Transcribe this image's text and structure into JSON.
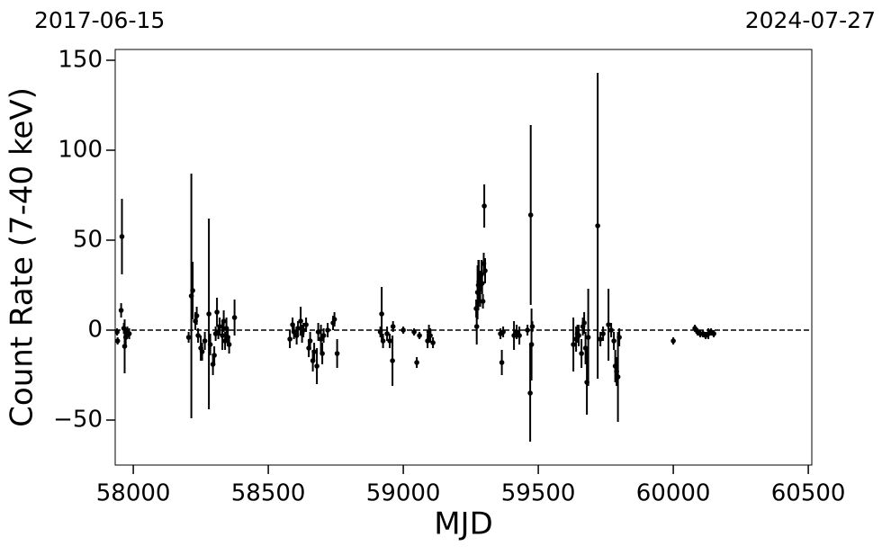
{
  "chart_data": {
    "type": "errorbar",
    "annotations": [
      "2017-06-15",
      "2024-07-27"
    ],
    "xlabel": "MJD",
    "ylabel": "Count Rate (7-40 keV)",
    "xlim": [
      57933,
      60513
    ],
    "ylim": [
      -75,
      156
    ],
    "xticks": [
      58000,
      58500,
      59000,
      59500,
      60000,
      60500
    ],
    "yticks": [
      {
        "value": -50,
        "label": "−50"
      },
      0,
      50,
      100,
      150
    ],
    "reference_line": {
      "y": 0
    },
    "color": "#000000",
    "x": [
      57940,
      57942,
      57955,
      57958,
      57965,
      57968,
      57972,
      57978,
      57985,
      58205,
      58215,
      58220,
      58230,
      58235,
      58240,
      58250,
      58255,
      58265,
      58280,
      58285,
      58295,
      58300,
      58305,
      58310,
      58315,
      58320,
      58330,
      58335,
      58340,
      58345,
      58350,
      58355,
      58375,
      58580,
      58590,
      58595,
      58605,
      58610,
      58620,
      58625,
      58630,
      58640,
      58650,
      58655,
      58665,
      58670,
      58680,
      58685,
      58695,
      58700,
      58705,
      58720,
      58740,
      58745,
      58755,
      58915,
      58920,
      58925,
      58940,
      58950,
      58960,
      58962,
      59000,
      59040,
      59050,
      59060,
      59090,
      59095,
      59100,
      59110,
      59270,
      59272,
      59275,
      59278,
      59280,
      59285,
      59290,
      59292,
      59295,
      59298,
      59300,
      59303,
      59360,
      59365,
      59370,
      59410,
      59420,
      59430,
      59460,
      59470,
      59472,
      59475,
      59478,
      59630,
      59640,
      59645,
      59650,
      59660,
      59665,
      59670,
      59675,
      59680,
      59685,
      59720,
      59730,
      59740,
      59760,
      59770,
      59780,
      59785,
      59790,
      59795,
      59800,
      60000,
      60080,
      60090,
      60100,
      60110,
      60120,
      60130,
      60140,
      60150
    ],
    "values": [
      -1,
      -6,
      11,
      52,
      1,
      -9,
      -4,
      -1,
      -2,
      -4,
      19,
      22,
      5,
      8,
      -3,
      -10,
      -12,
      -6,
      9,
      -8,
      -19,
      -14,
      -2,
      10,
      -1,
      2,
      -3,
      5,
      -6,
      1,
      -4,
      -8,
      7,
      -5,
      3,
      -1,
      -3,
      1,
      5,
      -2,
      0,
      3,
      -10,
      -6,
      -17,
      -12,
      -20,
      -1,
      -5,
      -13,
      -3,
      0,
      4,
      6,
      -13,
      -1,
      9,
      -6,
      -2,
      -6,
      -17,
      2,
      0,
      -1,
      -18,
      -3,
      -6,
      -1,
      -3,
      -7,
      12,
      2,
      21,
      25,
      27,
      23,
      31,
      26,
      16,
      37,
      69,
      33,
      -2,
      -18,
      -1,
      -3,
      -1,
      -3,
      0,
      -35,
      64,
      -8,
      2,
      -8,
      -5,
      -2,
      -3,
      -13,
      2,
      4,
      -10,
      -29,
      -4,
      58,
      -5,
      -2,
      3,
      0,
      -6,
      -20,
      -23,
      -26,
      -4,
      -6,
      1,
      -1,
      -2,
      -2,
      -3,
      -2,
      -1,
      -2
    ],
    "errors": [
      2,
      2,
      4,
      21,
      3,
      15,
      5,
      3,
      3,
      3,
      68,
      16,
      5,
      5,
      4,
      7,
      5,
      5,
      53,
      6,
      6,
      5,
      4,
      8,
      4,
      5,
      8,
      6,
      5,
      6,
      5,
      5,
      10,
      5,
      4,
      4,
      5,
      4,
      8,
      5,
      4,
      4,
      5,
      5,
      6,
      5,
      10,
      5,
      8,
      6,
      4,
      4,
      4,
      4,
      8,
      3,
      15,
      4,
      4,
      4,
      14,
      3,
      2,
      2,
      3,
      2,
      4,
      4,
      4,
      3,
      5,
      10,
      15,
      14,
      12,
      10,
      8,
      6,
      4,
      6,
      12,
      7,
      3,
      7,
      3,
      8,
      4,
      5,
      3,
      27,
      50,
      20,
      3,
      15,
      7,
      5,
      6,
      8,
      5,
      6,
      9,
      18,
      27,
      85,
      4,
      4,
      20,
      4,
      5,
      9,
      8,
      25,
      5,
      2,
      2,
      2,
      2,
      2,
      2,
      3,
      2,
      2
    ]
  }
}
